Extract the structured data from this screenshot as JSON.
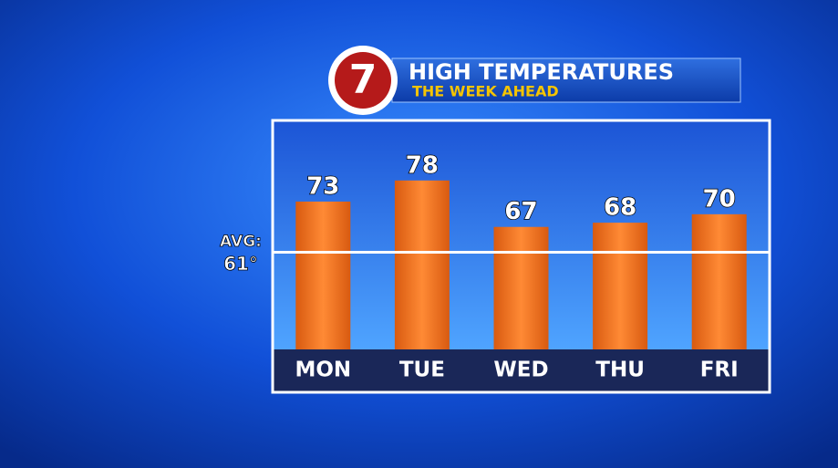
{
  "logo": "7",
  "chart_data": {
    "type": "bar",
    "title": "HIGH TEMPERATURES",
    "subtitle": "THE WEEK AHEAD",
    "categories": [
      "MON",
      "TUE",
      "WED",
      "THU",
      "FRI"
    ],
    "values": [
      73,
      78,
      67,
      68,
      70
    ],
    "color": "#f07a26",
    "ylim": [
      38,
      92
    ],
    "average": {
      "label": "AVG:",
      "value": 61,
      "value_label": "61°"
    }
  }
}
